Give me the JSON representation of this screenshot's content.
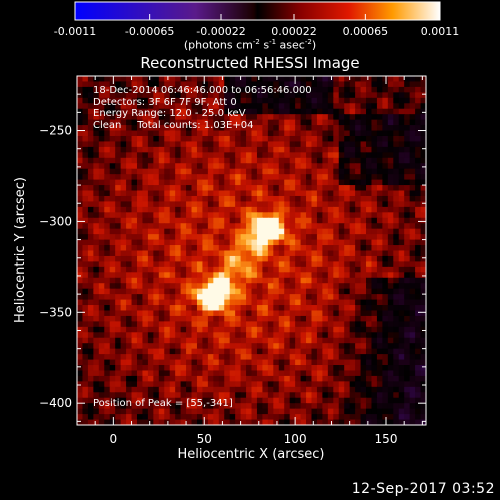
{
  "chart_data": {
    "type": "heatmap",
    "title": "Reconstructed RHESSI Image",
    "xlabel": "Heliocentric X (arcsec)",
    "ylabel": "Heliocentric Y (arcsec)",
    "xlim": [
      -20,
      172
    ],
    "ylim": [
      -412,
      -220
    ],
    "xticks": [
      0,
      50,
      100,
      150
    ],
    "yticks": [
      -250,
      -300,
      -350,
      -400
    ],
    "colorbar": {
      "min": -0.0011,
      "max": 0.0011,
      "ticks": [
        "-0.0011",
        "-0.00065",
        "-0.00022",
        "0.00022",
        "0.00065",
        "0.0011"
      ],
      "label_main": "(photons cm",
      "label_exp1": "-2",
      "label_mid1": " s",
      "label_exp2": "-1",
      "label_mid2": " asec",
      "label_exp3": "-2",
      "label_end": ")"
    },
    "sources": [
      {
        "x": 55,
        "y": -341,
        "intensity": 1.0
      },
      {
        "x": 85,
        "y": -304,
        "intensity": 0.92
      }
    ],
    "annotations": {
      "line1": "18-Dec-2014 06:46:46.000 to 06:56:46.000",
      "line2": "Detectors: 3F 6F 7F 9F, Att 0",
      "line3": "Energy Range: 12.0 - 25.0 keV",
      "line4": "Clean     Total counts: 1.03E+04",
      "peak": "Position of Peak = [55,-341]"
    }
  },
  "footer": {
    "date": "12-Sep-2017 03:52"
  },
  "colors": {
    "background": "#000000",
    "axis": "#ffffff"
  }
}
